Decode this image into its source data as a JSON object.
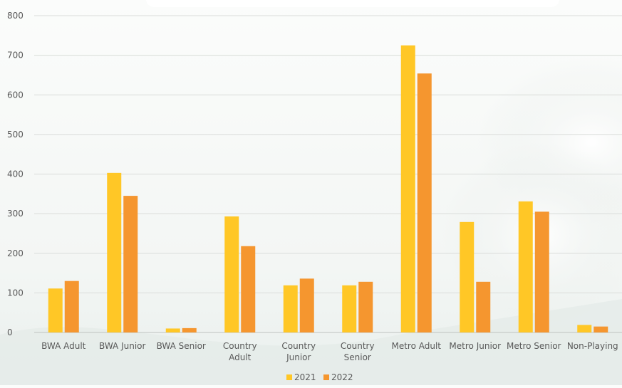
{
  "chart_data": {
    "type": "bar",
    "title": "",
    "xlabel": "",
    "ylabel": "",
    "categories": [
      [
        "BWA Adult"
      ],
      [
        "BWA Junior"
      ],
      [
        "BWA Senior"
      ],
      [
        "Country",
        "Adult"
      ],
      [
        "Country",
        "Junior"
      ],
      [
        "Country",
        "Senior"
      ],
      [
        "Metro Adult"
      ],
      [
        "Metro Junior"
      ],
      [
        "Metro Senior"
      ],
      [
        "Non-Playing"
      ]
    ],
    "series": [
      {
        "name": "2021",
        "color": "#FFC726",
        "values": [
          111,
          403,
          10,
          293,
          119,
          119,
          725,
          279,
          331,
          19
        ]
      },
      {
        "name": "2022",
        "color": "#F5962F",
        "values": [
          130,
          345,
          11,
          218,
          136,
          128,
          654,
          128,
          305,
          15
        ]
      }
    ],
    "ylim": [
      0,
      800
    ],
    "yticks": [
      "0",
      "100",
      "200",
      "300",
      "400",
      "500",
      "600",
      "700",
      "800"
    ],
    "grid": true,
    "legend_position": "bottom",
    "colors": {
      "gridline": "#d9dcd9",
      "axis": "#bfc3c0",
      "tick_text": "#595959"
    }
  }
}
